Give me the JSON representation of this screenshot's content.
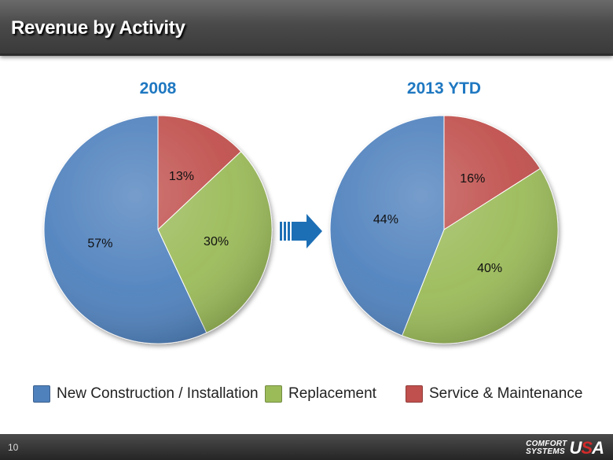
{
  "header": {
    "title": "Revenue by Activity"
  },
  "chart_data": [
    {
      "type": "pie",
      "title": "2008",
      "categories": [
        "Service & Maintenance",
        "Replacement",
        "New Construction / Installation"
      ],
      "values": [
        13,
        30,
        57
      ],
      "labels": [
        "13%",
        "30%",
        "57%"
      ],
      "colors": [
        "#c0504d",
        "#9bbb59",
        "#4f81bd"
      ]
    },
    {
      "type": "pie",
      "title": "2013 YTD",
      "categories": [
        "Service & Maintenance",
        "Replacement",
        "New Construction / Installation"
      ],
      "values": [
        16,
        40,
        44
      ],
      "labels": [
        "16%",
        "40%",
        "44%"
      ],
      "colors": [
        "#c0504d",
        "#9bbb59",
        "#4f81bd"
      ]
    }
  ],
  "legend": [
    {
      "label": "New Construction / Installation",
      "color": "#4f81bd"
    },
    {
      "label": "Replacement",
      "color": "#9bbb59"
    },
    {
      "label": "Service & Maintenance",
      "color": "#c0504d"
    }
  ],
  "arrow_icon": "right-arrow-icon",
  "footer": {
    "page_number": "10",
    "logo_line1": "COMFORT",
    "logo_line2": "SYSTEMS",
    "logo_usa_u": "U",
    "logo_usa_s": "S",
    "logo_usa_a": "A"
  }
}
